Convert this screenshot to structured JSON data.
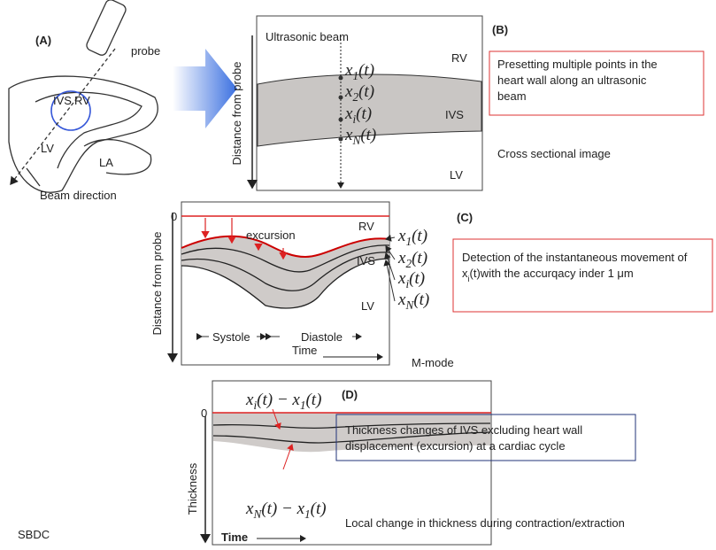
{
  "panel_a": {
    "label": "(A)",
    "probe": "probe",
    "ivs": "IVS",
    "rv": "RV",
    "lv": "LV",
    "la": "LA",
    "beam_direction": "Beam direction"
  },
  "panel_b": {
    "label": "(B)",
    "beam": "Ultrasonic beam",
    "points": [
      [
        {
          "text": "x"
        },
        {
          "sub": "1"
        },
        {
          "text": "(t)"
        }
      ],
      [
        {
          "text": "x"
        },
        {
          "sub": "2"
        },
        {
          "text": "(t)"
        }
      ],
      [
        {
          "text": "x"
        },
        {
          "sub": "i"
        },
        {
          "text": "(t)"
        }
      ],
      [
        {
          "text": "x"
        },
        {
          "sub": "N"
        },
        {
          "text": "(t)"
        }
      ]
    ],
    "rv": "RV",
    "ivs": "IVS",
    "lv": "LV",
    "y_axis": "Distance from probe",
    "description": [
      "Presetting multiple points in the",
      "heart wall along an ultrasonic",
      "beam"
    ],
    "caption": "Cross sectional image"
  },
  "panel_c": {
    "label": "(C)",
    "zero": "0",
    "excursion": "excursion",
    "rv": "RV",
    "ivs": "IVS",
    "lv": "LV",
    "points": [
      [
        {
          "text": "x"
        },
        {
          "sub": "1"
        },
        {
          "text": "(t)"
        }
      ],
      [
        {
          "text": "x"
        },
        {
          "sub": "2"
        },
        {
          "text": "(t)"
        }
      ],
      [
        {
          "text": "x"
        },
        {
          "sub": "i"
        },
        {
          "text": "(t)"
        }
      ],
      [
        {
          "text": "x"
        },
        {
          "sub": "N"
        },
        {
          "text": "(t)"
        }
      ]
    ],
    "y_axis": "Distance from probe",
    "systole": "Systole",
    "diastole": "Diastole",
    "x_axis": "Time",
    "description": [
      [
        {
          "text": "Detection of the instantaneous movement of"
        }
      ],
      [
        {
          "text": "x"
        },
        {
          "sub": "i"
        },
        {
          "text": "(t)with the accurqacy inder 1 μm"
        }
      ]
    ],
    "caption": "M-mode"
  },
  "panel_d": {
    "label": "(D)",
    "zero": "0",
    "upper": [
      {
        "text": "x"
      },
      {
        "sub": "i"
      },
      {
        "text": "(t) − x"
      },
      {
        "sub": "1"
      },
      {
        "text": "(t)"
      }
    ],
    "lower": [
      {
        "text": "x"
      },
      {
        "sub": "N"
      },
      {
        "text": "(t) − x"
      },
      {
        "sub": "1"
      },
      {
        "text": "(t)"
      }
    ],
    "y_axis": "Thickness",
    "x_axis": "Time",
    "description": [
      "Thickness changes of IVS excluding heart wall",
      "displacement (excursion) at a cardiac cycle"
    ],
    "caption": "Local change in thickness during contraction/extraction"
  },
  "watermark": "SBDC"
}
